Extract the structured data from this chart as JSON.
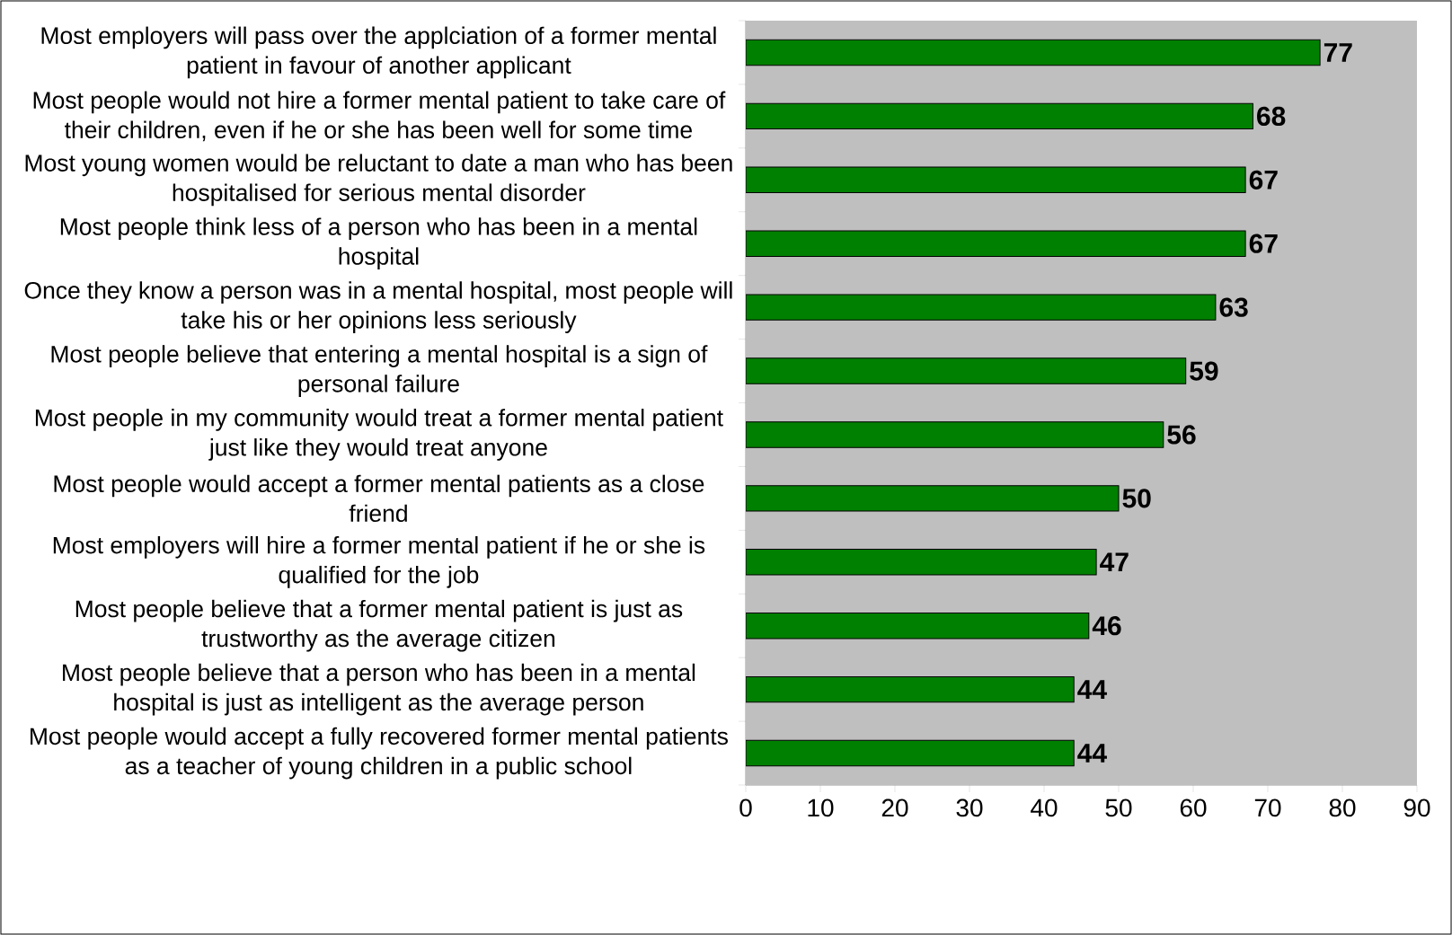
{
  "chart_data": {
    "type": "bar",
    "orientation": "horizontal",
    "categories": [
      "Most employers will pass over the applciation of a former mental patient in favour of another applicant",
      "Most people would not hire a former mental patient to take care of their children, even if he or she has been well for some time",
      "Most young women would be reluctant to date a man who has been hospitalised for serious mental disorder",
      "Most people think less of a person who has been in a mental hospital",
      "Once they know a person was in a mental hospital, most people will take his or her opinions less seriously",
      "Most people believe that entering a mental hospital is a sign of personal failure",
      "Most people in my community would treat a former mental patient just like they would treat anyone",
      "Most people would accept a former mental patients as a close friend",
      "Most employers will hire a former mental patient if he or she is qualified for the job",
      "Most people believe that a former mental patient is just as trustworthy as the average citizen",
      "Most people believe that a person who has been in a mental hospital is just as intelligent as the average person",
      "Most people would accept a fully recovered former mental patients as a teacher of young children in a public school"
    ],
    "values": [
      77,
      68,
      67,
      67,
      63,
      59,
      56,
      50,
      47,
      46,
      44,
      44
    ],
    "color": "#008000",
    "data_labels": true,
    "xlim": [
      0,
      90
    ],
    "xticks": [
      0,
      10,
      20,
      30,
      40,
      50,
      60,
      70,
      80,
      90
    ]
  }
}
